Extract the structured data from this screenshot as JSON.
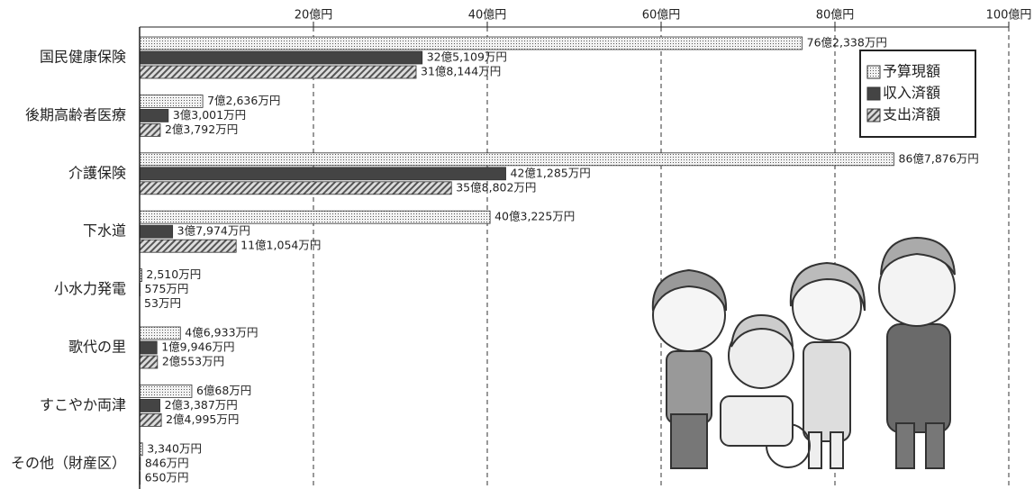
{
  "chart_data": {
    "type": "bar",
    "orientation": "horizontal",
    "categories": [
      "国民健康保険",
      "後期高齢者医療",
      "介護保険",
      "下水道",
      "小水力発電",
      "歌代の里",
      "すこやか両津",
      "その他（財産区）"
    ],
    "series": [
      {
        "name": "予算現額",
        "color": "#e8e8e8",
        "pattern": "dots",
        "values": [
          76.2338,
          7.2636,
          86.7876,
          40.3225,
          0.251,
          4.6933,
          6.0068,
          0.334
        ],
        "value_labels": [
          "76億2,338万円",
          "7億2,636万円",
          "86億7,876万円",
          "40億3,225万円",
          "2,510万円",
          "4億6,933万円",
          "6億68万円",
          "3,340万円"
        ]
      },
      {
        "name": "収入済額",
        "color": "#444444",
        "pattern": "solid",
        "values": [
          32.5109,
          3.3001,
          42.1285,
          3.7974,
          0.0575,
          1.9946,
          2.3387,
          0.0846
        ],
        "value_labels": [
          "32億5,109万円",
          "3億3,001万円",
          "42億1,285万円",
          "3億7,974万円",
          "575万円",
          "1億9,946万円",
          "2億3,387万円",
          "846万円"
        ]
      },
      {
        "name": "支出済額",
        "color": "#9a9a9a",
        "pattern": "hatch",
        "values": [
          31.8144,
          2.3792,
          35.8802,
          11.1054,
          0.0053,
          2.0553,
          2.4995,
          0.065
        ],
        "value_labels": [
          "31億8,144万円",
          "2億3,792万円",
          "35億8,802万円",
          "11億1,054万円",
          "53万円",
          "2億553万円",
          "2億4,995万円",
          "650万円"
        ]
      }
    ],
    "xlim": [
      0,
      100
    ],
    "xticks": [
      {
        "value": 20,
        "label": "20億円"
      },
      {
        "value": 40,
        "label": "40億円"
      },
      {
        "value": 60,
        "label": "60億円"
      },
      {
        "value": 80,
        "label": "80億円"
      },
      {
        "value": 100,
        "label": "100億円"
      }
    ],
    "grid": true,
    "legend": "upper right"
  }
}
